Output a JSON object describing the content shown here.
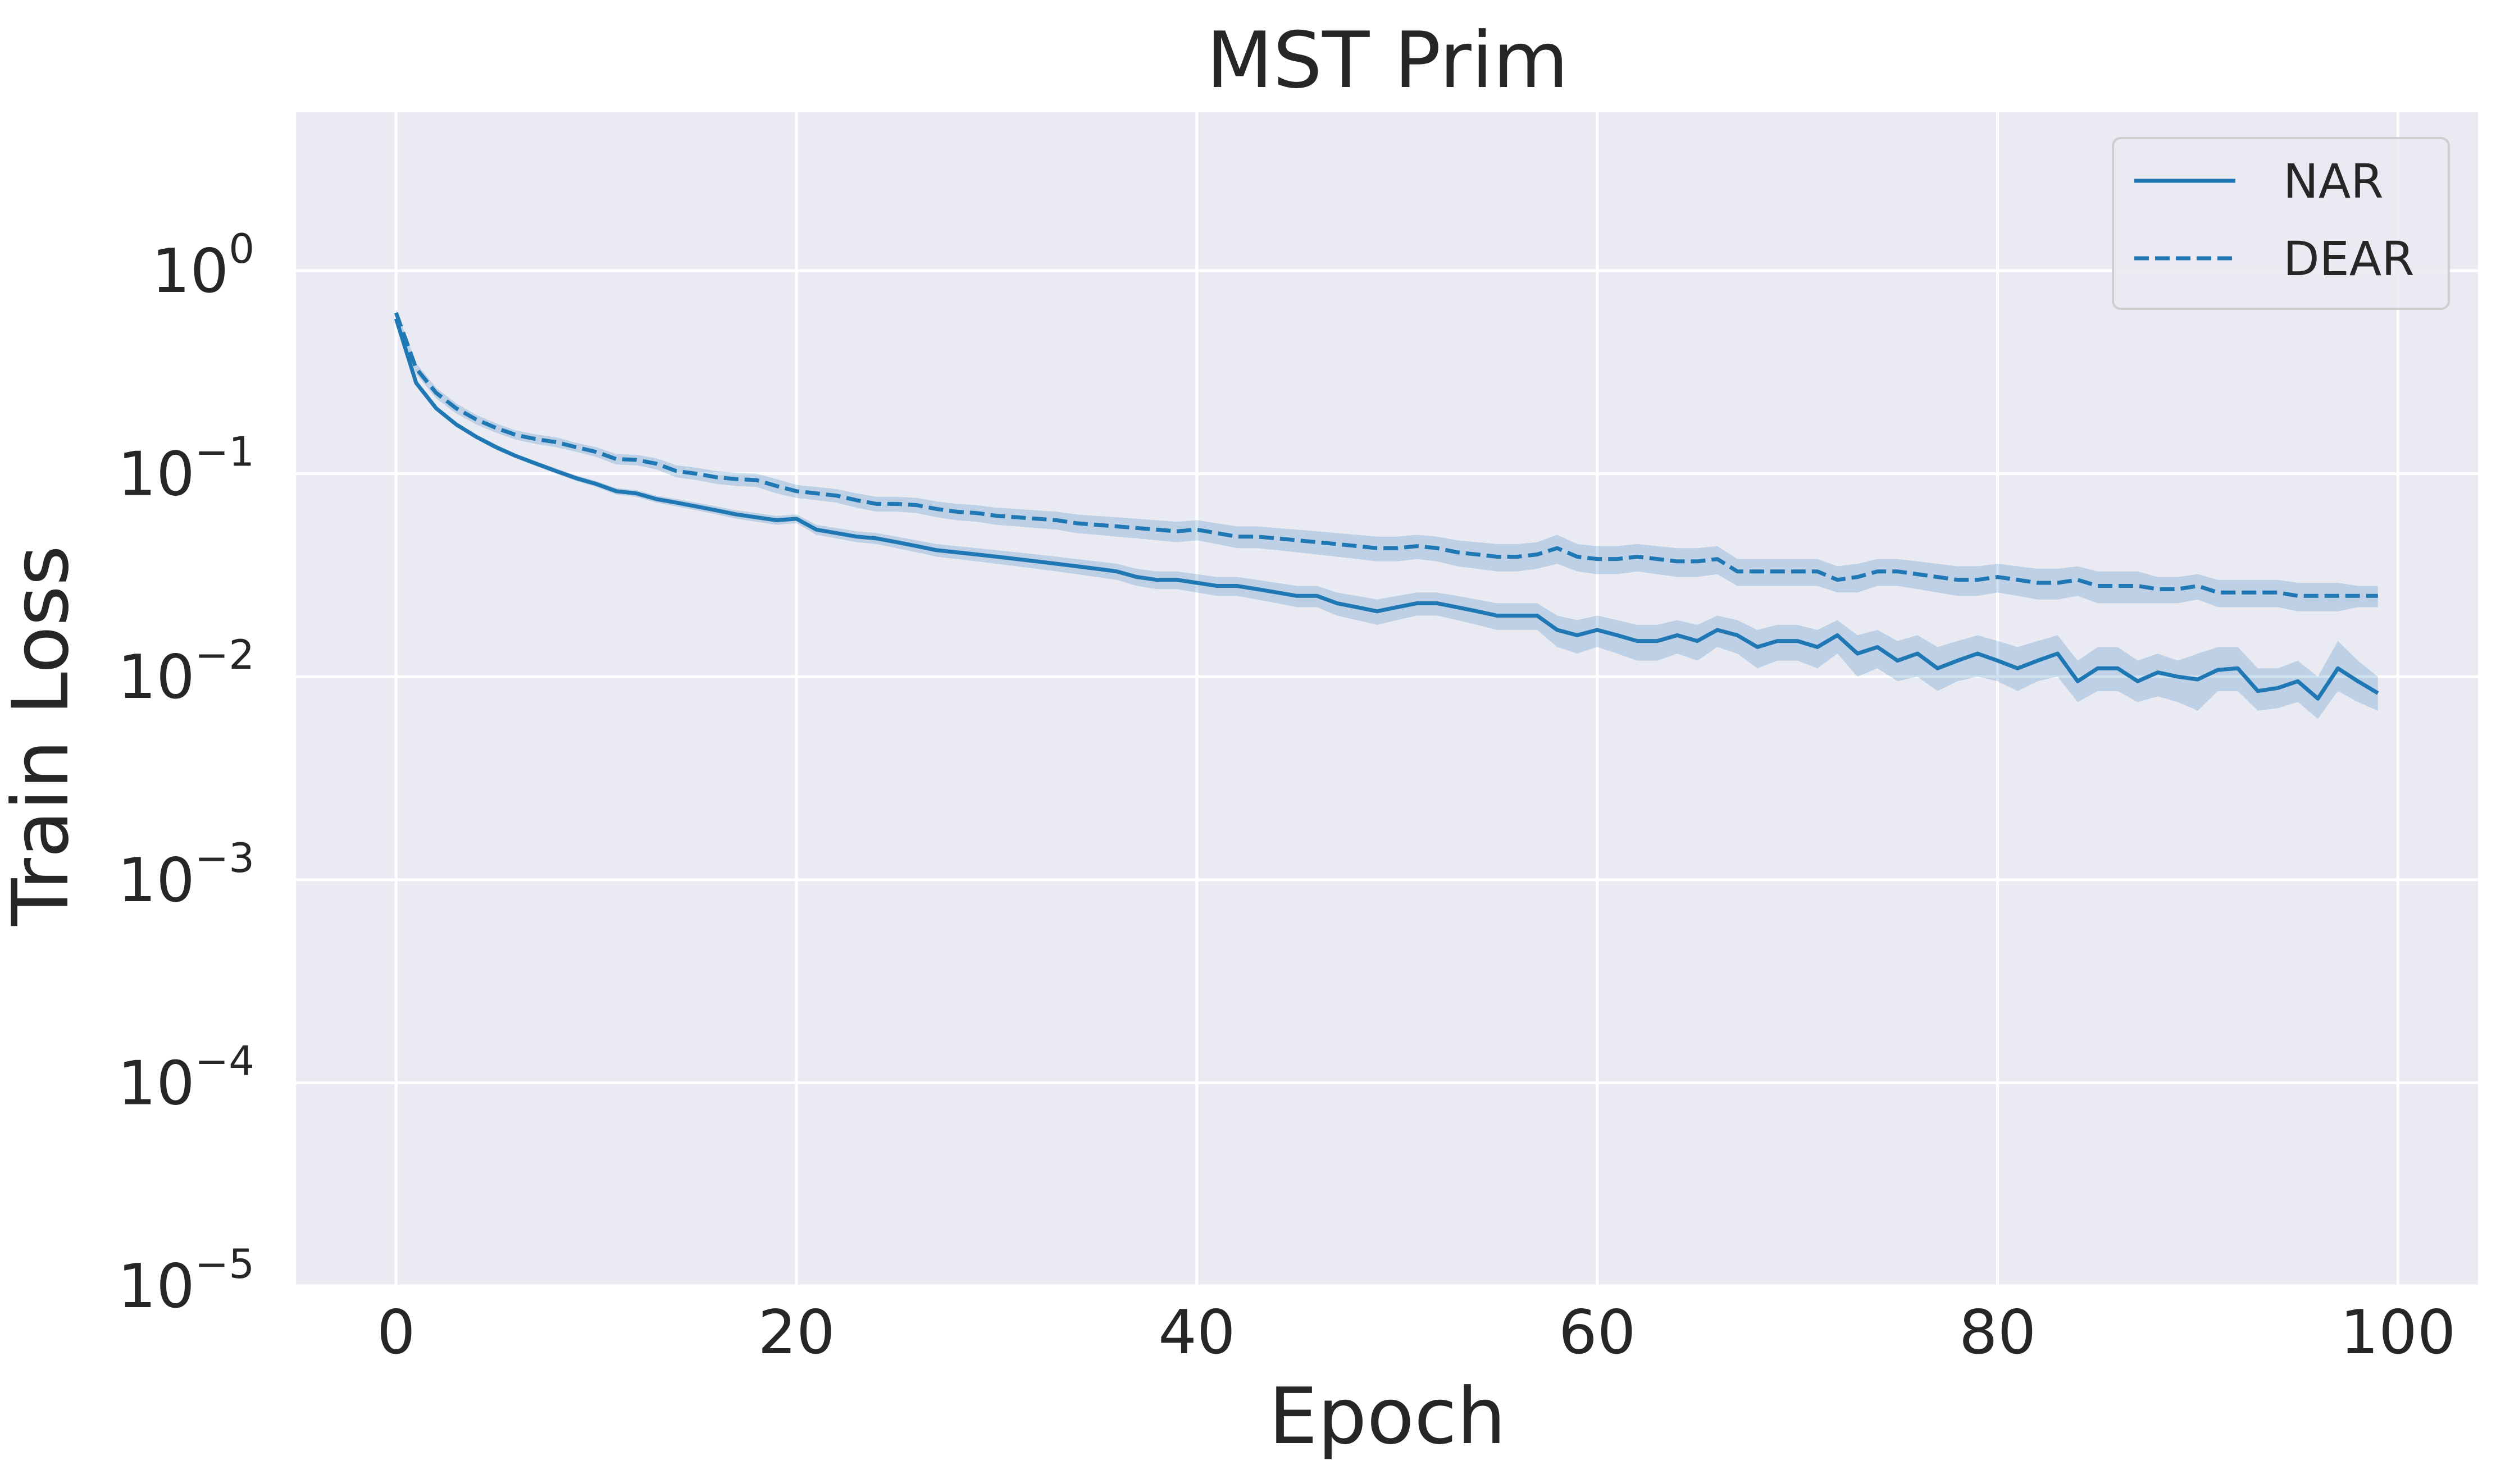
{
  "chart_data": {
    "type": "line",
    "title": "MST Prim",
    "xlabel": "Epoch",
    "ylabel": "Train Loss",
    "xlim": [
      -5,
      104
    ],
    "ylim_log10": [
      -5,
      0.78
    ],
    "yscale": "log",
    "grid": true,
    "legend_placement": "top-right",
    "x_ticks": [
      0,
      20,
      40,
      60,
      80,
      100
    ],
    "x_tick_labels": [
      "0",
      "20",
      "40",
      "60",
      "80",
      "100"
    ],
    "y_ticks_log10": [
      0,
      -1,
      -2,
      -3,
      -4,
      -5
    ],
    "y_tick_labels": [
      {
        "base": "10",
        "exp": "0"
      },
      {
        "base": "10",
        "exp": "−1"
      },
      {
        "base": "10",
        "exp": "−2"
      },
      {
        "base": "10",
        "exp": "−3"
      },
      {
        "base": "10",
        "exp": "−4"
      },
      {
        "base": "10",
        "exp": "−5"
      }
    ],
    "colors": {
      "series": "#1f77b4",
      "band": "#1f77b4",
      "background": "#eaeaf2",
      "grid": "#ffffff"
    },
    "series": [
      {
        "name": "NAR",
        "style": "solid",
        "x": [
          0,
          1,
          2,
          3,
          4,
          5,
          6,
          7,
          8,
          9,
          10,
          11,
          12,
          13,
          14,
          15,
          16,
          17,
          18,
          19,
          20,
          21,
          22,
          23,
          24,
          25,
          26,
          27,
          28,
          29,
          30,
          31,
          32,
          33,
          34,
          35,
          36,
          37,
          38,
          39,
          40,
          41,
          42,
          43,
          44,
          45,
          46,
          47,
          48,
          49,
          50,
          51,
          52,
          53,
          54,
          55,
          56,
          57,
          58,
          59,
          60,
          61,
          62,
          63,
          64,
          65,
          66,
          67,
          68,
          69,
          70,
          71,
          72,
          73,
          74,
          75,
          76,
          77,
          78,
          79,
          80,
          81,
          82,
          83,
          84,
          85,
          86,
          87,
          88,
          89,
          90,
          91,
          92,
          93,
          94,
          95,
          96,
          97,
          98,
          99
        ],
        "values": [
          0.58,
          0.28,
          0.21,
          0.175,
          0.152,
          0.135,
          0.122,
          0.112,
          0.103,
          0.095,
          0.089,
          0.082,
          0.08,
          0.075,
          0.072,
          0.069,
          0.066,
          0.063,
          0.061,
          0.059,
          0.06,
          0.053,
          0.051,
          0.049,
          0.048,
          0.046,
          0.044,
          0.042,
          0.041,
          0.04,
          0.039,
          0.038,
          0.037,
          0.036,
          0.035,
          0.034,
          0.033,
          0.031,
          0.03,
          0.03,
          0.029,
          0.028,
          0.028,
          0.027,
          0.026,
          0.025,
          0.025,
          0.023,
          0.022,
          0.021,
          0.022,
          0.023,
          0.023,
          0.022,
          0.021,
          0.02,
          0.02,
          0.02,
          0.017,
          0.016,
          0.017,
          0.016,
          0.015,
          0.015,
          0.016,
          0.015,
          0.017,
          0.016,
          0.014,
          0.015,
          0.015,
          0.014,
          0.016,
          0.013,
          0.014,
          0.012,
          0.013,
          0.011,
          0.012,
          0.013,
          0.012,
          0.011,
          0.012,
          0.013,
          0.0095,
          0.011,
          0.011,
          0.0095,
          0.0105,
          0.01,
          0.0097,
          0.0108,
          0.011,
          0.0085,
          0.0088,
          0.0095,
          0.0078,
          0.011,
          0.0095,
          0.0083
        ],
        "lower": [
          0.56,
          0.27,
          0.205,
          0.17,
          0.148,
          0.131,
          0.119,
          0.109,
          0.1,
          0.092,
          0.086,
          0.079,
          0.077,
          0.072,
          0.069,
          0.066,
          0.063,
          0.06,
          0.058,
          0.056,
          0.057,
          0.05,
          0.048,
          0.046,
          0.045,
          0.043,
          0.041,
          0.039,
          0.038,
          0.037,
          0.036,
          0.035,
          0.034,
          0.033,
          0.032,
          0.031,
          0.03,
          0.028,
          0.027,
          0.027,
          0.026,
          0.025,
          0.025,
          0.024,
          0.023,
          0.022,
          0.022,
          0.02,
          0.019,
          0.018,
          0.019,
          0.02,
          0.02,
          0.019,
          0.018,
          0.017,
          0.017,
          0.017,
          0.014,
          0.013,
          0.014,
          0.013,
          0.012,
          0.012,
          0.013,
          0.012,
          0.014,
          0.013,
          0.011,
          0.012,
          0.012,
          0.011,
          0.013,
          0.01,
          0.011,
          0.0095,
          0.01,
          0.0085,
          0.0095,
          0.01,
          0.0095,
          0.0085,
          0.0095,
          0.01,
          0.0075,
          0.0085,
          0.0085,
          0.0075,
          0.008,
          0.0075,
          0.0068,
          0.0085,
          0.0085,
          0.0068,
          0.007,
          0.0075,
          0.0062,
          0.0085,
          0.0075,
          0.0068
        ],
        "upper": [
          0.6,
          0.29,
          0.215,
          0.18,
          0.156,
          0.139,
          0.125,
          0.115,
          0.106,
          0.098,
          0.092,
          0.085,
          0.083,
          0.078,
          0.075,
          0.072,
          0.069,
          0.066,
          0.064,
          0.062,
          0.063,
          0.056,
          0.054,
          0.052,
          0.051,
          0.049,
          0.047,
          0.045,
          0.044,
          0.043,
          0.042,
          0.041,
          0.04,
          0.039,
          0.038,
          0.037,
          0.036,
          0.034,
          0.033,
          0.033,
          0.032,
          0.031,
          0.031,
          0.03,
          0.029,
          0.028,
          0.028,
          0.026,
          0.025,
          0.024,
          0.025,
          0.026,
          0.026,
          0.025,
          0.024,
          0.023,
          0.023,
          0.023,
          0.02,
          0.019,
          0.02,
          0.019,
          0.018,
          0.018,
          0.019,
          0.018,
          0.02,
          0.019,
          0.017,
          0.018,
          0.018,
          0.017,
          0.019,
          0.016,
          0.017,
          0.015,
          0.016,
          0.014,
          0.015,
          0.016,
          0.015,
          0.014,
          0.015,
          0.016,
          0.012,
          0.014,
          0.014,
          0.012,
          0.013,
          0.012,
          0.013,
          0.014,
          0.014,
          0.011,
          0.011,
          0.012,
          0.01,
          0.015,
          0.012,
          0.01
        ]
      },
      {
        "name": "DEAR",
        "style": "dashed",
        "x": [
          0,
          1,
          2,
          3,
          4,
          5,
          6,
          7,
          8,
          9,
          10,
          11,
          12,
          13,
          14,
          15,
          16,
          17,
          18,
          19,
          20,
          21,
          22,
          23,
          24,
          25,
          26,
          27,
          28,
          29,
          30,
          31,
          32,
          33,
          34,
          35,
          36,
          37,
          38,
          39,
          40,
          41,
          42,
          43,
          44,
          45,
          46,
          47,
          48,
          49,
          50,
          51,
          52,
          53,
          54,
          55,
          56,
          57,
          58,
          59,
          60,
          61,
          62,
          63,
          64,
          65,
          66,
          67,
          68,
          69,
          70,
          71,
          72,
          73,
          74,
          75,
          76,
          77,
          78,
          79,
          80,
          81,
          82,
          83,
          84,
          85,
          86,
          87,
          88,
          89,
          90,
          91,
          92,
          93,
          94,
          95,
          96,
          97,
          98,
          99
        ],
        "values": [
          0.62,
          0.33,
          0.25,
          0.21,
          0.185,
          0.168,
          0.155,
          0.148,
          0.143,
          0.135,
          0.128,
          0.118,
          0.117,
          0.112,
          0.103,
          0.1,
          0.096,
          0.094,
          0.093,
          0.087,
          0.082,
          0.08,
          0.078,
          0.074,
          0.071,
          0.071,
          0.07,
          0.067,
          0.065,
          0.064,
          0.062,
          0.061,
          0.06,
          0.059,
          0.057,
          0.056,
          0.055,
          0.054,
          0.053,
          0.052,
          0.053,
          0.051,
          0.049,
          0.049,
          0.048,
          0.047,
          0.046,
          0.045,
          0.044,
          0.043,
          0.043,
          0.044,
          0.043,
          0.041,
          0.04,
          0.039,
          0.039,
          0.04,
          0.043,
          0.039,
          0.038,
          0.038,
          0.039,
          0.038,
          0.037,
          0.037,
          0.038,
          0.033,
          0.033,
          0.033,
          0.033,
          0.033,
          0.03,
          0.031,
          0.033,
          0.033,
          0.032,
          0.031,
          0.03,
          0.03,
          0.031,
          0.03,
          0.029,
          0.029,
          0.03,
          0.028,
          0.028,
          0.028,
          0.027,
          0.027,
          0.028,
          0.026,
          0.026,
          0.026,
          0.026,
          0.025,
          0.025,
          0.025,
          0.025,
          0.025
        ],
        "lower": [
          0.59,
          0.31,
          0.235,
          0.198,
          0.175,
          0.159,
          0.147,
          0.14,
          0.135,
          0.128,
          0.121,
          0.111,
          0.11,
          0.105,
          0.096,
          0.093,
          0.089,
          0.087,
          0.086,
          0.08,
          0.076,
          0.074,
          0.072,
          0.068,
          0.065,
          0.065,
          0.064,
          0.061,
          0.059,
          0.058,
          0.056,
          0.055,
          0.054,
          0.053,
          0.051,
          0.05,
          0.049,
          0.048,
          0.047,
          0.046,
          0.047,
          0.045,
          0.043,
          0.043,
          0.042,
          0.041,
          0.04,
          0.039,
          0.038,
          0.037,
          0.037,
          0.038,
          0.037,
          0.035,
          0.034,
          0.033,
          0.033,
          0.034,
          0.036,
          0.033,
          0.032,
          0.032,
          0.033,
          0.032,
          0.031,
          0.031,
          0.032,
          0.028,
          0.028,
          0.028,
          0.028,
          0.028,
          0.026,
          0.026,
          0.028,
          0.028,
          0.027,
          0.026,
          0.025,
          0.025,
          0.026,
          0.025,
          0.024,
          0.024,
          0.025,
          0.023,
          0.023,
          0.023,
          0.023,
          0.023,
          0.024,
          0.022,
          0.022,
          0.022,
          0.022,
          0.021,
          0.021,
          0.021,
          0.022,
          0.022
        ],
        "upper": [
          0.65,
          0.35,
          0.265,
          0.222,
          0.195,
          0.177,
          0.163,
          0.156,
          0.151,
          0.142,
          0.135,
          0.125,
          0.124,
          0.119,
          0.11,
          0.107,
          0.103,
          0.101,
          0.1,
          0.094,
          0.088,
          0.086,
          0.084,
          0.08,
          0.077,
          0.077,
          0.076,
          0.073,
          0.071,
          0.07,
          0.068,
          0.067,
          0.066,
          0.065,
          0.063,
          0.062,
          0.061,
          0.06,
          0.059,
          0.058,
          0.059,
          0.057,
          0.055,
          0.055,
          0.054,
          0.053,
          0.052,
          0.051,
          0.05,
          0.049,
          0.049,
          0.05,
          0.049,
          0.047,
          0.046,
          0.045,
          0.045,
          0.046,
          0.05,
          0.045,
          0.044,
          0.044,
          0.045,
          0.044,
          0.043,
          0.043,
          0.044,
          0.038,
          0.038,
          0.038,
          0.038,
          0.038,
          0.035,
          0.036,
          0.038,
          0.038,
          0.037,
          0.036,
          0.035,
          0.035,
          0.036,
          0.035,
          0.034,
          0.034,
          0.035,
          0.033,
          0.033,
          0.033,
          0.031,
          0.031,
          0.032,
          0.03,
          0.03,
          0.03,
          0.03,
          0.029,
          0.029,
          0.029,
          0.028,
          0.028
        ]
      }
    ]
  }
}
